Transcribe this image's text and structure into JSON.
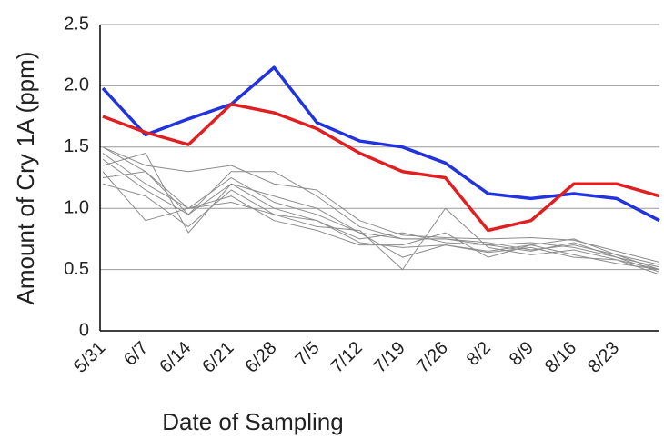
{
  "chart_data": {
    "type": "line",
    "xlabel": "Date of Sampling",
    "ylabel": "Amount of Cry 1A (ppm)",
    "categories": [
      "5/31",
      "6/7",
      "6/14",
      "6/21",
      "6/28",
      "7/5",
      "7/12",
      "7/19",
      "7/26",
      "8/2",
      "8/9",
      "8/16",
      "8/23",
      null
    ],
    "ylim": [
      0,
      2.5
    ],
    "yticks": [
      0,
      0.5,
      {
        "value": 1,
        "label": "1.0"
      },
      1.5,
      {
        "value": 2,
        "label": "2.0"
      },
      2.5
    ],
    "grid": true,
    "series": [
      {
        "color": "#8c8c8c",
        "values": [
          1.5,
          1.3,
          0.95,
          1.3,
          1.3,
          1.1,
          0.85,
          0.75,
          0.75,
          0.7,
          0.72,
          0.68,
          0.6,
          0.52
        ]
      },
      {
        "color": "#8c8c8c",
        "values": [
          1.45,
          1.2,
          1.0,
          1.25,
          1.05,
          0.95,
          0.8,
          0.6,
          0.7,
          0.65,
          0.7,
          0.75,
          0.62,
          0.5
        ]
      },
      {
        "color": "#8c8c8c",
        "values": [
          1.35,
          1.45,
          0.8,
          1.2,
          1.0,
          0.9,
          0.75,
          0.8,
          0.72,
          0.7,
          0.65,
          0.72,
          0.6,
          0.48
        ]
      },
      {
        "color": "#8c8c8c",
        "values": [
          1.2,
          1.1,
          0.85,
          1.15,
          0.95,
          0.85,
          0.82,
          0.5,
          1.0,
          0.68,
          0.62,
          0.66,
          0.58,
          0.46
        ]
      },
      {
        "color": "#8c8c8c",
        "values": [
          1.3,
          0.9,
          1.0,
          1.1,
          0.9,
          0.82,
          0.7,
          0.7,
          0.8,
          0.6,
          0.7,
          0.62,
          0.55,
          0.5
        ]
      },
      {
        "color": "#8c8c8c",
        "values": [
          1.4,
          1.15,
          0.95,
          1.2,
          1.1,
          1.0,
          0.8,
          0.75,
          0.75,
          0.72,
          0.66,
          0.7,
          0.62,
          0.54
        ]
      },
      {
        "color": "#8c8c8c",
        "values": [
          1.25,
          1.3,
          1.0,
          1.05,
          0.95,
          0.9,
          0.72,
          0.68,
          0.7,
          0.64,
          0.68,
          0.6,
          0.58,
          0.5
        ]
      },
      {
        "color": "#8c8c8c",
        "values": [
          1.5,
          1.35,
          1.3,
          1.35,
          1.2,
          1.15,
          0.9,
          0.78,
          0.76,
          0.75,
          0.76,
          0.74,
          0.65,
          0.56
        ]
      },
      {
        "color": "#2233dd",
        "values": [
          1.98,
          1.6,
          1.73,
          1.85,
          2.15,
          1.7,
          1.55,
          1.5,
          1.37,
          1.12,
          1.08,
          1.12,
          1.08,
          0.9
        ]
      },
      {
        "color": "#e02020",
        "values": [
          1.75,
          1.62,
          1.52,
          1.85,
          1.78,
          1.65,
          1.45,
          1.3,
          1.25,
          0.82,
          0.9,
          1.2,
          1.2,
          1.1
        ]
      }
    ]
  }
}
